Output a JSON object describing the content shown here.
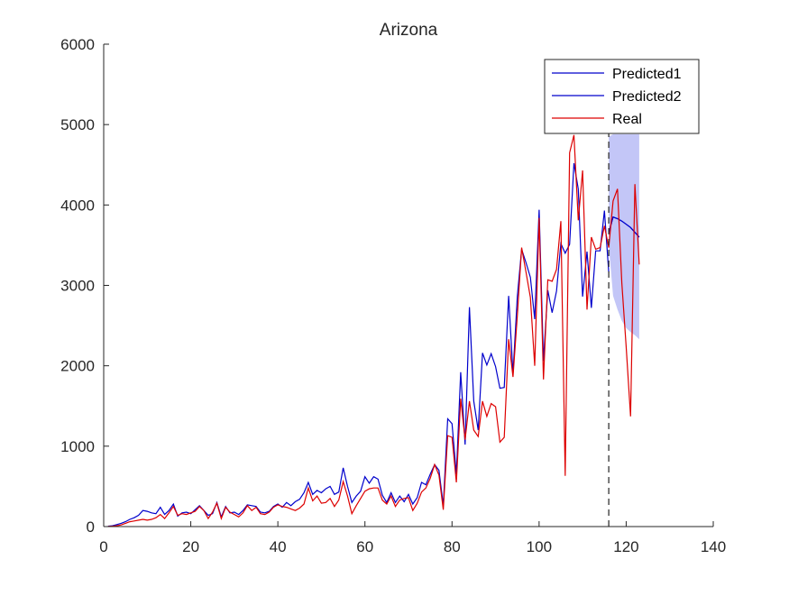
{
  "chart_data": {
    "type": "line",
    "title": "Arizona",
    "xlabel": "",
    "ylabel": "",
    "xlim": [
      0,
      140
    ],
    "ylim": [
      0,
      6000
    ],
    "xticks": [
      0,
      20,
      40,
      60,
      80,
      100,
      120,
      140
    ],
    "yticks": [
      0,
      1000,
      2000,
      3000,
      4000,
      5000,
      6000
    ],
    "xtick_labels": [
      "0",
      "20",
      "40",
      "60",
      "80",
      "100",
      "120",
      "140"
    ],
    "ytick_labels": [
      "0",
      "1000",
      "2000",
      "3000",
      "4000",
      "5000",
      "6000"
    ],
    "grid": false,
    "legend_position": "top-right",
    "vertical_line_x": 116,
    "series": [
      {
        "name": "Predicted1",
        "color": "#0000cc",
        "x": [
          1,
          2,
          3,
          4,
          5,
          6,
          7,
          8,
          9,
          10,
          11,
          12,
          13,
          14,
          15,
          16,
          17,
          18,
          19,
          20,
          21,
          22,
          23,
          24,
          25,
          26,
          27,
          28,
          29,
          30,
          31,
          32,
          33,
          34,
          35,
          36,
          37,
          38,
          39,
          40,
          41,
          42,
          43,
          44,
          45,
          46,
          47,
          48,
          49,
          50,
          51,
          52,
          53,
          54,
          55,
          56,
          57,
          58,
          59,
          60,
          61,
          62,
          63,
          64,
          65,
          66,
          67,
          68,
          69,
          70,
          71,
          72,
          73,
          74,
          75,
          76,
          77,
          78,
          79,
          80,
          81,
          82,
          83,
          84,
          85,
          86,
          87,
          88,
          89,
          90,
          91,
          92,
          93,
          94,
          95,
          96,
          97,
          98,
          99,
          100,
          101,
          102,
          103,
          104,
          105,
          106,
          107,
          108,
          109,
          110,
          111,
          112,
          113,
          114,
          115,
          116
        ],
        "y": [
          5,
          10,
          25,
          40,
          60,
          90,
          110,
          140,
          200,
          190,
          170,
          160,
          240,
          150,
          200,
          280,
          130,
          170,
          180,
          160,
          210,
          260,
          200,
          140,
          160,
          300,
          120,
          250,
          170,
          180,
          150,
          200,
          270,
          260,
          250,
          180,
          170,
          190,
          250,
          280,
          240,
          300,
          260,
          310,
          340,
          420,
          550,
          400,
          450,
          420,
          470,
          500,
          400,
          430,
          730,
          500,
          300,
          380,
          440,
          620,
          540,
          620,
          590,
          390,
          300,
          420,
          300,
          380,
          310,
          400,
          280,
          360,
          550,
          520,
          650,
          770,
          700,
          260,
          1340,
          1280,
          650,
          1920,
          1020,
          2730,
          1560,
          1200,
          2160,
          2010,
          2150,
          1990,
          1720,
          1730,
          2870,
          1900,
          2860,
          3450,
          3280,
          3100,
          2580,
          3940,
          2060,
          2940,
          2660,
          2930,
          3520,
          3400,
          3510,
          4520,
          4200,
          2860,
          3420,
          2720,
          3430,
          3430,
          3930,
          3160
        ],
        "forecast_x": [
          116,
          117,
          118,
          119,
          120,
          121,
          122,
          123
        ],
        "forecast_y": [
          3650,
          3850,
          3830,
          3800,
          3760,
          3720,
          3660,
          3600
        ]
      },
      {
        "name": "Predicted2",
        "color": "#0000cc",
        "x": [
          116,
          117,
          118,
          119,
          120,
          121,
          122,
          123
        ],
        "y": [
          3650,
          3850,
          3830,
          3800,
          3760,
          3720,
          3660,
          3600
        ],
        "band_upper": [
          4850,
          4880,
          4880,
          4880,
          4880,
          4880,
          4880,
          4880
        ],
        "band_lower": [
          3500,
          2870,
          2700,
          2560,
          2470,
          2420,
          2380,
          2330
        ]
      },
      {
        "name": "Real",
        "color": "#dd0000",
        "x": [
          1,
          2,
          3,
          4,
          5,
          6,
          7,
          8,
          9,
          10,
          11,
          12,
          13,
          14,
          15,
          16,
          17,
          18,
          19,
          20,
          21,
          22,
          23,
          24,
          25,
          26,
          27,
          28,
          29,
          30,
          31,
          32,
          33,
          34,
          35,
          36,
          37,
          38,
          39,
          40,
          41,
          42,
          43,
          44,
          45,
          46,
          47,
          48,
          49,
          50,
          51,
          52,
          53,
          54,
          55,
          56,
          57,
          58,
          59,
          60,
          61,
          62,
          63,
          64,
          65,
          66,
          67,
          68,
          69,
          70,
          71,
          72,
          73,
          74,
          75,
          76,
          77,
          78,
          79,
          80,
          81,
          82,
          83,
          84,
          85,
          86,
          87,
          88,
          89,
          90,
          91,
          92,
          93,
          94,
          95,
          96,
          97,
          98,
          99,
          100,
          101,
          102,
          103,
          104,
          105,
          106,
          107,
          108,
          109,
          110,
          111,
          112,
          113,
          114,
          115,
          116,
          117,
          118,
          119,
          120,
          121,
          122,
          123
        ],
        "y": [
          2,
          5,
          10,
          20,
          40,
          60,
          70,
          80,
          90,
          80,
          90,
          110,
          150,
          100,
          170,
          250,
          140,
          160,
          150,
          170,
          190,
          250,
          200,
          100,
          180,
          290,
          100,
          240,
          180,
          150,
          120,
          170,
          260,
          200,
          240,
          160,
          150,
          180,
          240,
          270,
          250,
          240,
          220,
          200,
          230,
          280,
          480,
          320,
          380,
          290,
          300,
          350,
          250,
          330,
          560,
          380,
          160,
          260,
          350,
          440,
          470,
          480,
          480,
          330,
          280,
          380,
          250,
          330,
          350,
          360,
          200,
          290,
          430,
          480,
          600,
          770,
          640,
          210,
          1130,
          1110,
          550,
          1590,
          1080,
          1560,
          1200,
          1120,
          1560,
          1370,
          1530,
          1490,
          1050,
          1110,
          2330,
          1860,
          2620,
          3470,
          3160,
          2850,
          2000,
          3840,
          1830,
          3070,
          3050,
          3200,
          3800,
          630,
          4650,
          4870,
          3810,
          4430,
          2700,
          3600,
          3450,
          3470,
          3740,
          3470,
          4050,
          4200,
          3030,
          2240,
          1370,
          4260,
          3260
        ]
      }
    ]
  }
}
